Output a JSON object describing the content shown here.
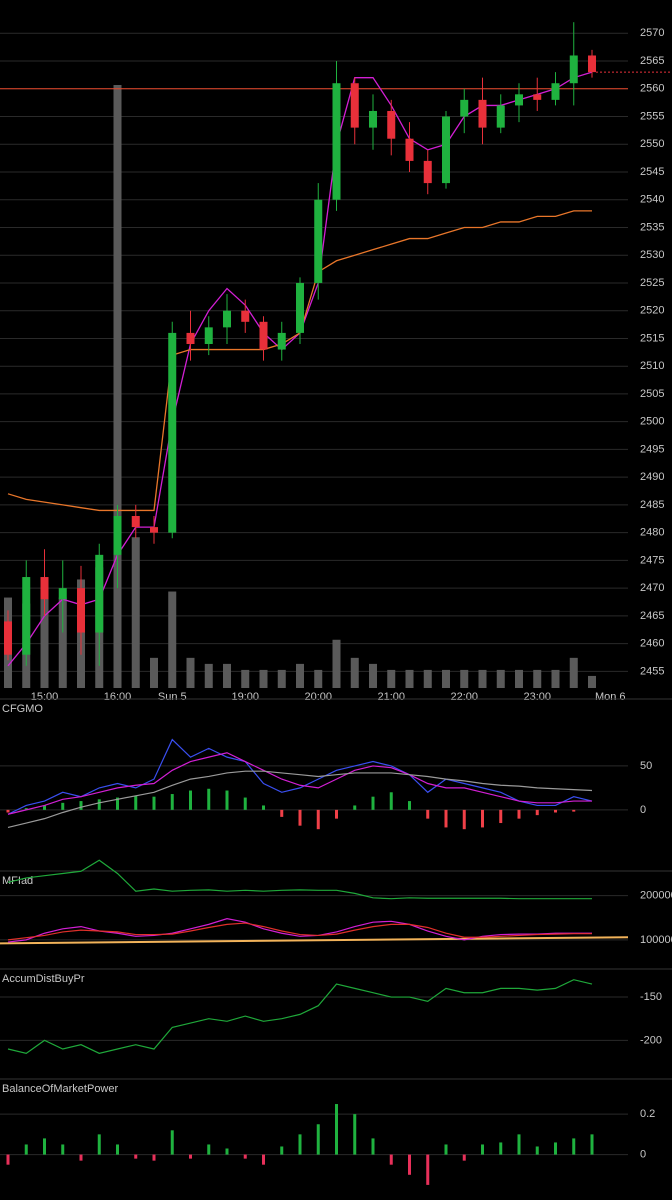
{
  "chart_data": [
    {
      "type": "candlestick",
      "categories": [
        null,
        null,
        "15:00",
        null,
        null,
        null,
        "16:00",
        null,
        null,
        "Sun 5",
        null,
        null,
        null,
        "19:00",
        null,
        null,
        null,
        "20:00",
        null,
        null,
        null,
        "21:00",
        null,
        null,
        null,
        "22:00",
        null,
        null,
        null,
        "23:00",
        null,
        null,
        null,
        "Mon 6"
      ],
      "open": [
        2464,
        2458,
        2472,
        2468,
        2470,
        2462,
        2476,
        2483,
        2481,
        2480,
        2516,
        2514,
        2517,
        2520,
        2518,
        2513,
        2516,
        2525,
        2540,
        2561,
        2553,
        2556,
        2551,
        2547,
        2543,
        2555,
        2558,
        2553,
        2557,
        2559,
        2558,
        2561,
        2566,
        null
      ],
      "high": [
        2466,
        2475,
        2477,
        2475,
        2474,
        2478,
        2485,
        2485,
        2483,
        2518,
        2520,
        2519,
        2523,
        2522,
        2519,
        2518,
        2526,
        2543,
        2565,
        2562,
        2559,
        2558,
        2554,
        2549,
        2556,
        2560,
        2562,
        2559,
        2561,
        2562,
        2563,
        2572,
        2567,
        null
      ],
      "low": [
        2457,
        2456,
        2465,
        2462,
        2458,
        2456,
        2470,
        2479,
        2478,
        2479,
        2511,
        2512,
        2514,
        2516,
        2511,
        2511,
        2514,
        2522,
        2538,
        2550,
        2549,
        2548,
        2545,
        2541,
        2542,
        2552,
        2550,
        2552,
        2554,
        2556,
        2557,
        2557,
        2562,
        null
      ],
      "close": [
        2458,
        2472,
        2468,
        2470,
        2462,
        2476,
        2483,
        2481,
        2480,
        2516,
        2514,
        2517,
        2520,
        2518,
        2513,
        2516,
        2525,
        2540,
        2561,
        2553,
        2556,
        2551,
        2547,
        2543,
        2555,
        2558,
        2553,
        2557,
        2559,
        2558,
        2561,
        2566,
        2563,
        null
      ],
      "up_color": "#1fb23f",
      "down_color": "#e8303a",
      "overlays": [
        {
          "color": "#d21fd4",
          "values": [
            2456,
            2460,
            2465,
            2468,
            2467,
            2468,
            2476,
            2481,
            2481,
            2500,
            2514,
            2520,
            2524,
            2521,
            2516,
            2513,
            2516,
            2525,
            2550,
            2562,
            2562,
            2557,
            2551,
            2549,
            2550,
            2555,
            2557,
            2557,
            2558,
            2559,
            2560,
            2562,
            2563,
            null
          ]
        },
        {
          "color": "#e8762a",
          "values": [
            2487,
            2486,
            2485.5,
            2485,
            2484.5,
            2484,
            2484,
            2484,
            2484,
            2512,
            2513,
            2513,
            2513,
            2513,
            2513,
            2514,
            2516,
            2527,
            2529,
            2530,
            2531,
            2532,
            2533,
            2533,
            2534,
            2535,
            2535,
            2536,
            2536,
            2537,
            2537,
            2538,
            2538,
            null
          ]
        }
      ],
      "volume": {
        "color": "#5a5a5a",
        "lim": [
          0,
          100
        ],
        "values": [
          15,
          14,
          16,
          15,
          18,
          20,
          100,
          25,
          5,
          16,
          5,
          4,
          4,
          3,
          3,
          3,
          4,
          3,
          8,
          5,
          4,
          3,
          3,
          3,
          3,
          3,
          3,
          3,
          3,
          3,
          3,
          5,
          2,
          null
        ]
      },
      "price_line": {
        "value": 2560,
        "color": "#e8462a"
      },
      "ylim": [
        2452,
        2576
      ],
      "yticks": [
        2455,
        2460,
        2465,
        2470,
        2475,
        2480,
        2485,
        2490,
        2495,
        2500,
        2505,
        2510,
        2515,
        2520,
        2525,
        2530,
        2535,
        2540,
        2545,
        2550,
        2555,
        2560,
        2565,
        2570
      ],
      "grid": true
    },
    {
      "type": "line",
      "title": "CFGMO",
      "series": [
        {
          "color": "#3a4ff0",
          "values": [
            -5,
            5,
            10,
            20,
            15,
            25,
            30,
            25,
            35,
            80,
            60,
            70,
            60,
            55,
            30,
            20,
            25,
            35,
            45,
            50,
            55,
            50,
            40,
            20,
            35,
            30,
            25,
            20,
            10,
            5,
            5,
            15,
            10
          ]
        },
        {
          "color": "#d21fd4",
          "values": [
            -5,
            0,
            5,
            12,
            15,
            20,
            25,
            28,
            30,
            45,
            55,
            60,
            65,
            55,
            45,
            35,
            28,
            25,
            35,
            45,
            50,
            48,
            40,
            30,
            25,
            25,
            20,
            15,
            10,
            8,
            8,
            10,
            10
          ]
        },
        {
          "color": "#9a9a9a",
          "values": [
            -20,
            -15,
            -10,
            -3,
            3,
            8,
            12,
            16,
            20,
            28,
            35,
            38,
            42,
            44,
            44,
            42,
            40,
            38,
            40,
            42,
            42,
            42,
            40,
            38,
            35,
            33,
            30,
            28,
            27,
            25,
            24,
            23,
            22
          ]
        }
      ],
      "histogram": {
        "up_color": "#1fb23f",
        "down_color": "#f04048",
        "values": [
          -3,
          2,
          5,
          8,
          10,
          12,
          14,
          16,
          15,
          18,
          22,
          24,
          22,
          14,
          5,
          -8,
          -18,
          -22,
          -10,
          5,
          15,
          20,
          10,
          -10,
          -20,
          -22,
          -20,
          -15,
          -10,
          -6,
          -3,
          -2,
          0
        ]
      },
      "ylim": [
        -40,
        100
      ],
      "yticks": [
        0,
        50
      ],
      "grid": true
    },
    {
      "type": "line",
      "title": "MFIad",
      "series": [
        {
          "color": "#1fa83a",
          "values": [
            230000,
            240000,
            245000,
            250000,
            255000,
            280000,
            250000,
            210000,
            215000,
            210000,
            212000,
            213000,
            210000,
            212000,
            210000,
            212000,
            213000,
            212000,
            212000,
            205000,
            195000,
            193000,
            195000,
            194000,
            194000,
            194000,
            194000,
            194000,
            193000,
            193000,
            193000,
            193000,
            193000
          ]
        },
        {
          "color": "#d21fd4",
          "values": [
            95000,
            100000,
            115000,
            125000,
            130000,
            120000,
            115000,
            108000,
            110000,
            115000,
            125000,
            135000,
            148000,
            140000,
            125000,
            115000,
            108000,
            110000,
            118000,
            130000,
            140000,
            142000,
            135000,
            120000,
            108000,
            100000,
            108000,
            112000,
            113000,
            113000,
            115000,
            115000,
            115000
          ]
        },
        {
          "color": "#e0302a",
          "values": [
            100000,
            105000,
            110000,
            118000,
            122000,
            120000,
            118000,
            112000,
            112000,
            113000,
            120000,
            128000,
            135000,
            138000,
            130000,
            120000,
            112000,
            110000,
            113000,
            122000,
            130000,
            135000,
            135000,
            128000,
            115000,
            106000,
            106000,
            108000,
            110000,
            112000,
            113000,
            114000,
            114000
          ]
        }
      ],
      "trend_line": {
        "color": "#f2b35a",
        "values": [
          92000,
          106000
        ]
      },
      "ylim": [
        50000,
        285000
      ],
      "yticks": [
        100000,
        200000
      ],
      "grid": true
    },
    {
      "type": "line",
      "title": "AccumDistBuyPr",
      "series": [
        {
          "color": "#1fa83a",
          "values": [
            -210,
            -215,
            -200,
            -210,
            -205,
            -215,
            -210,
            -205,
            -210,
            -185,
            -180,
            -175,
            -178,
            -172,
            -178,
            -175,
            -170,
            -160,
            -135,
            -140,
            -145,
            -150,
            -150,
            -155,
            -140,
            -145,
            -145,
            -140,
            -140,
            -142,
            -140,
            -130,
            -135
          ]
        }
      ],
      "ylim": [
        -240,
        -113
      ],
      "yticks": [
        -200,
        -150
      ],
      "grid": true
    },
    {
      "type": "bar",
      "title": "BalanceOfMarketPower",
      "up_color": "#1fb23f",
      "down_color": "#e8305a",
      "values": [
        -0.05,
        0.05,
        0.08,
        0.05,
        -0.03,
        0.1,
        0.05,
        -0.02,
        -0.03,
        0.12,
        -0.02,
        0.05,
        0.03,
        -0.02,
        -0.05,
        0.04,
        0.1,
        0.15,
        0.25,
        0.2,
        0.08,
        -0.05,
        -0.1,
        -0.15,
        0.05,
        -0.03,
        0.05,
        0.06,
        0.1,
        0.04,
        0.06,
        0.08,
        0.1
      ],
      "ylim": [
        -0.2,
        0.27
      ],
      "yticks": [
        0,
        0.2
      ],
      "grid": true
    }
  ]
}
